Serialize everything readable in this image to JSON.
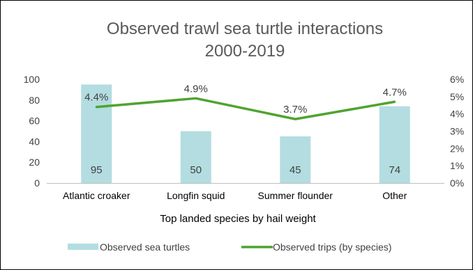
{
  "chart_data": {
    "type": "bar+line",
    "title": [
      "Observed trawl sea turtle interactions",
      "2000-2019"
    ],
    "xlabel": "Top landed species by hail weight",
    "categories": [
      "Atlantic croaker",
      "Longfin squid",
      "Summer flounder",
      "Other"
    ],
    "series": [
      {
        "name": "Observed sea turtles",
        "type": "bar",
        "axis": "left",
        "color": "#b3dde1",
        "values": [
          95,
          50,
          45,
          74
        ],
        "labels": [
          "95",
          "50",
          "45",
          "74"
        ]
      },
      {
        "name": "Observed trips (by species)",
        "type": "line",
        "axis": "right",
        "color": "#4fa430",
        "values": [
          4.4,
          4.9,
          3.7,
          4.7
        ],
        "labels": [
          "4.4%",
          "4.9%",
          "3.7%",
          "4.7%"
        ]
      }
    ],
    "y_left": {
      "min": 0,
      "max": 100,
      "ticks": [
        "0",
        "20",
        "40",
        "60",
        "80",
        "100"
      ]
    },
    "y_right": {
      "min": 0,
      "max": 6,
      "ticks": [
        "0%",
        "1%",
        "2%",
        "3%",
        "4%",
        "5%",
        "6%"
      ]
    },
    "grid": false,
    "legend_position": "bottom"
  }
}
